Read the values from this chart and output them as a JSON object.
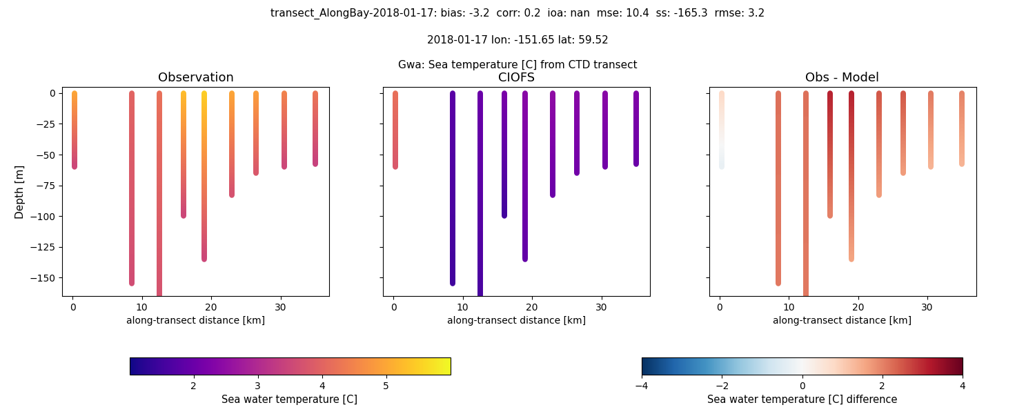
{
  "title_line1": "transect_AlongBay-2018-01-17: bias: -3.2  corr: 0.2  ioa: nan  mse: 10.4  ss: -165.3  rmse: 3.2",
  "title_line2": "2018-01-17 lon: -151.65 lat: 59.52",
  "title_line3": "Gwa: Sea temperature [C] from CTD transect",
  "subplot_titles": [
    "Observation",
    "CIOFS",
    "Obs - Model"
  ],
  "ylabel": "Depth [m]",
  "xlabel": "along-transect distance [km]",
  "cbar1_label": "Sea water temperature [C]",
  "cbar2_label": "Sea water temperature [C] difference",
  "obs_cmap": "plasma",
  "model_cmap": "plasma",
  "diff_cmap": "RdBu_r",
  "temp_vmin": 1.0,
  "temp_vmax": 6.0,
  "diff_vmin": -4.0,
  "diff_vmax": 4.0,
  "xlim": [
    -1.5,
    37
  ],
  "ylim": [
    -165,
    5
  ],
  "yticks": [
    0,
    -25,
    -50,
    -75,
    -100,
    -125,
    -150
  ],
  "xticks": [
    0,
    10,
    20,
    30
  ],
  "cast_distances": [
    0.3,
    8.5,
    12.5,
    16.0,
    19.0,
    23.0,
    26.5,
    30.5,
    35.0
  ],
  "cast_depths": [
    -60,
    -155,
    -165,
    -100,
    -135,
    -83,
    -65,
    -60,
    -58
  ],
  "obs_top_temps": [
    5.0,
    4.0,
    4.2,
    5.3,
    5.5,
    5.0,
    4.9,
    4.5,
    4.3
  ],
  "obs_bot_temps": [
    3.5,
    3.6,
    3.7,
    3.5,
    3.5,
    3.7,
    3.8,
    3.5,
    3.4
  ],
  "model_top_temps": [
    4.2,
    1.8,
    2.0,
    2.2,
    2.4,
    2.5,
    2.4,
    2.4,
    2.3
  ],
  "model_bot_temps": [
    3.8,
    1.5,
    1.6,
    1.5,
    1.9,
    2.0,
    2.1,
    2.1,
    2.0
  ],
  "diff_top_vals": [
    0.8,
    2.2,
    2.2,
    3.1,
    3.1,
    2.5,
    2.5,
    2.1,
    2.0
  ],
  "diff_bot_vals": [
    -0.3,
    2.1,
    2.1,
    2.0,
    1.6,
    1.7,
    1.7,
    1.4,
    1.4
  ],
  "linewidth": 5.5
}
